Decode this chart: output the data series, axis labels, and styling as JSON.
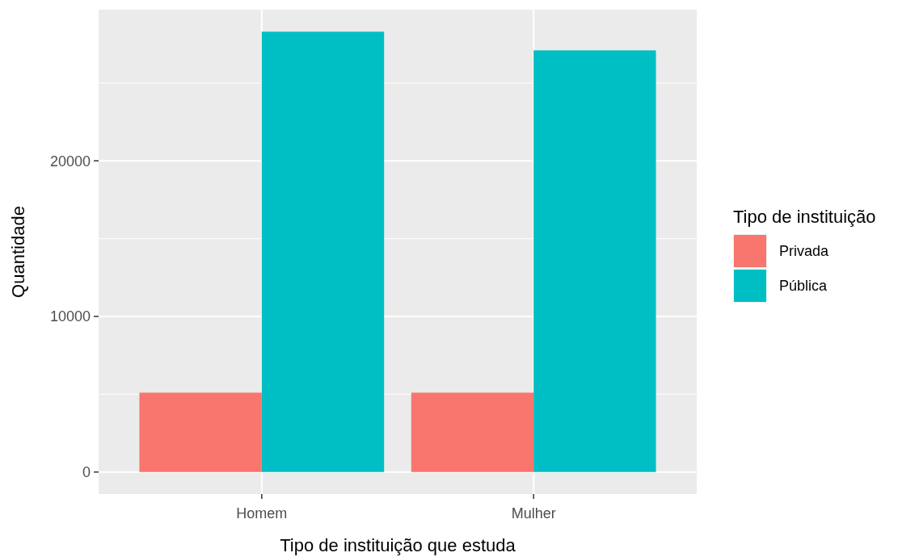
{
  "chart_data": {
    "type": "bar",
    "xlabel": "Tipo de instituição que estuda",
    "ylabel": "Quantidade",
    "legend_title": "Tipo de instituição",
    "categories": [
      "Homem",
      "Mulher"
    ],
    "series": [
      {
        "name": "Privada",
        "color": "#f8766d",
        "values": [
          5100,
          5100
        ]
      },
      {
        "name": "Pública",
        "color": "#00bfc4",
        "values": [
          28300,
          27100
        ]
      }
    ],
    "ylim": [
      -1415,
      29715
    ],
    "yticks": [
      0,
      10000,
      20000
    ],
    "grid": true,
    "legend": "right"
  }
}
